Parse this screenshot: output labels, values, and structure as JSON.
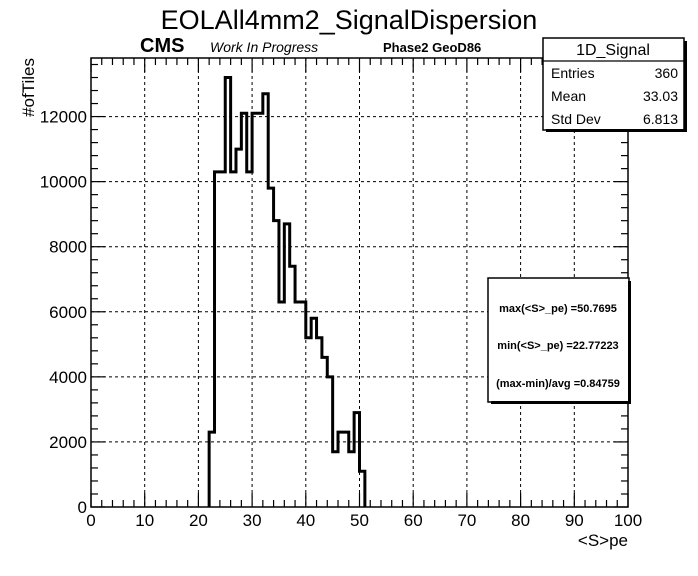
{
  "chart_data": {
    "type": "histogram",
    "title": "EOLAll4mm2_SignalDispersion",
    "xlabel": "<S>pe",
    "ylabel": "#ofTiles",
    "xlim": [
      0,
      100
    ],
    "ylim": [
      0,
      13800
    ],
    "xticks": [
      0,
      10,
      20,
      30,
      40,
      50,
      60,
      70,
      80,
      90,
      100
    ],
    "yticks": [
      0,
      2000,
      4000,
      6000,
      8000,
      10000,
      12000
    ],
    "grid": true,
    "bin_width": 1,
    "bins": [
      {
        "x0": 22,
        "y": 2300
      },
      {
        "x0": 23,
        "y": 10300
      },
      {
        "x0": 24,
        "y": 10300
      },
      {
        "x0": 25,
        "y": 13200
      },
      {
        "x0": 26,
        "y": 10300
      },
      {
        "x0": 27,
        "y": 11000
      },
      {
        "x0": 28,
        "y": 12100
      },
      {
        "x0": 29,
        "y": 10300
      },
      {
        "x0": 30,
        "y": 12100
      },
      {
        "x0": 31,
        "y": 12100
      },
      {
        "x0": 32,
        "y": 12700
      },
      {
        "x0": 33,
        "y": 9800
      },
      {
        "x0": 34,
        "y": 8800
      },
      {
        "x0": 35,
        "y": 6300
      },
      {
        "x0": 36,
        "y": 8700
      },
      {
        "x0": 37,
        "y": 7400
      },
      {
        "x0": 38,
        "y": 6300
      },
      {
        "x0": 39,
        "y": 6300
      },
      {
        "x0": 40,
        "y": 5200
      },
      {
        "x0": 41,
        "y": 5800
      },
      {
        "x0": 42,
        "y": 5200
      },
      {
        "x0": 43,
        "y": 4600
      },
      {
        "x0": 44,
        "y": 4000
      },
      {
        "x0": 45,
        "y": 1700
      },
      {
        "x0": 46,
        "y": 2300
      },
      {
        "x0": 47,
        "y": 2300
      },
      {
        "x0": 48,
        "y": 1700
      },
      {
        "x0": 49,
        "y": 2900
      },
      {
        "x0": 50,
        "y": 1100
      }
    ]
  },
  "labels": {
    "cms": "CMS",
    "work_in_progress": "Work In Progress",
    "geometry": "Phase2 GeoD86"
  },
  "stats_box": {
    "title": "1D_Signal",
    "rows": [
      {
        "name": "Entries",
        "value": "360"
      },
      {
        "name": "Mean",
        "value": "33.03"
      },
      {
        "name": "Std Dev",
        "value": "6.813"
      }
    ]
  },
  "info_box": {
    "lines": [
      "max(<S>_pe) =50.7695",
      "min(<S>_pe) =22.77223",
      "(max-min)/avg =0.84759"
    ]
  },
  "colors": {
    "line": "#000000",
    "grid": "#000000",
    "background": "#ffffff"
  }
}
